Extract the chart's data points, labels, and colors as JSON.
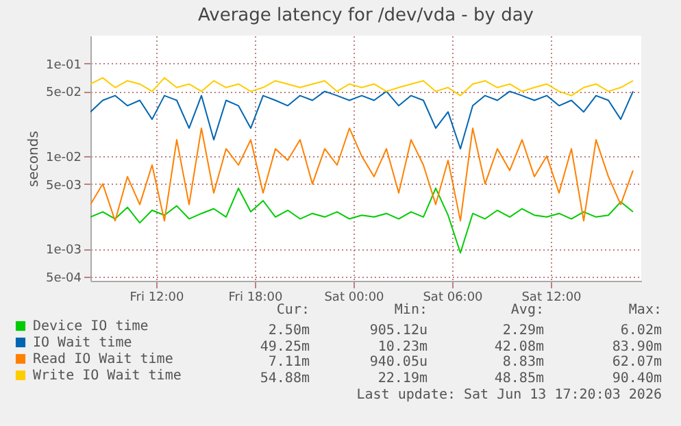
{
  "chart_data": {
    "type": "line",
    "title": "Average latency for /dev/vda - by day",
    "ylabel": "seconds",
    "log": "y",
    "grid": true,
    "legend": "bottom left",
    "marker": "none",
    "line_style": "solid",
    "xlim": [
      "2026-06-12T08:00",
      "2026-06-13T17:30"
    ],
    "xticks": [
      {
        "value": "2026-06-12T12:00",
        "label": "Fri 12:00"
      },
      {
        "value": "2026-06-12T18:00",
        "label": "Fri 18:00"
      },
      {
        "value": "2026-06-13T00:00",
        "label": "Sat 00:00"
      },
      {
        "value": "2026-06-13T06:00",
        "label": "Sat 06:00"
      },
      {
        "value": "2026-06-13T12:00",
        "label": "Sat 12:00"
      }
    ],
    "ylim": [
      0.00045,
      0.2
    ],
    "yticks": [
      {
        "value": 0.0005,
        "label": "5e-04"
      },
      {
        "value": 0.001,
        "label": "1e-03"
      },
      {
        "value": 0.005,
        "label": "5e-03"
      },
      {
        "value": 0.01,
        "label": "1e-02"
      },
      {
        "value": 0.05,
        "label": "5e-02"
      },
      {
        "value": 0.1,
        "label": "1e-01"
      }
    ],
    "x": [
      "2026-06-12T08:00",
      "2026-06-12T08:45",
      "2026-06-12T09:30",
      "2026-06-12T10:15",
      "2026-06-12T11:00",
      "2026-06-12T11:45",
      "2026-06-12T12:30",
      "2026-06-12T13:15",
      "2026-06-12T14:00",
      "2026-06-12T14:45",
      "2026-06-12T15:30",
      "2026-06-12T16:15",
      "2026-06-12T17:00",
      "2026-06-12T17:45",
      "2026-06-12T18:30",
      "2026-06-12T19:15",
      "2026-06-12T20:00",
      "2026-06-12T20:45",
      "2026-06-12T21:30",
      "2026-06-12T22:15",
      "2026-06-12T23:00",
      "2026-06-12T23:45",
      "2026-06-13T00:30",
      "2026-06-13T01:15",
      "2026-06-13T02:00",
      "2026-06-13T02:45",
      "2026-06-13T03:30",
      "2026-06-13T04:15",
      "2026-06-13T05:00",
      "2026-06-13T05:45",
      "2026-06-13T06:30",
      "2026-06-13T07:15",
      "2026-06-13T08:00",
      "2026-06-13T08:45",
      "2026-06-13T09:30",
      "2026-06-13T10:15",
      "2026-06-13T11:00",
      "2026-06-13T11:45",
      "2026-06-13T12:30",
      "2026-06-13T13:15",
      "2026-06-13T14:00",
      "2026-06-13T14:45",
      "2026-06-13T15:30",
      "2026-06-13T16:15",
      "2026-06-13T17:00"
    ],
    "series": [
      {
        "name": "Device IO time",
        "color": "#00cc00",
        "values": [
          0.0022,
          0.0025,
          0.0021,
          0.0028,
          0.0019,
          0.0026,
          0.0023,
          0.0029,
          0.0021,
          0.0024,
          0.0027,
          0.0022,
          0.0045,
          0.0025,
          0.0033,
          0.0022,
          0.0026,
          0.0021,
          0.0024,
          0.0022,
          0.0025,
          0.0021,
          0.0023,
          0.0022,
          0.0024,
          0.0021,
          0.0025,
          0.0022,
          0.0045,
          0.0023,
          0.0009,
          0.0024,
          0.0021,
          0.0026,
          0.0022,
          0.0027,
          0.0023,
          0.0022,
          0.0024,
          0.0021,
          0.0025,
          0.0022,
          0.0023,
          0.0032,
          0.0025
        ]
      },
      {
        "name": "IO Wait time",
        "color": "#0066b3",
        "values": [
          0.03,
          0.04,
          0.045,
          0.035,
          0.04,
          0.025,
          0.045,
          0.04,
          0.02,
          0.045,
          0.015,
          0.04,
          0.035,
          0.02,
          0.045,
          0.04,
          0.035,
          0.045,
          0.04,
          0.05,
          0.045,
          0.04,
          0.045,
          0.04,
          0.05,
          0.035,
          0.045,
          0.04,
          0.02,
          0.03,
          0.012,
          0.035,
          0.045,
          0.04,
          0.05,
          0.045,
          0.04,
          0.045,
          0.035,
          0.04,
          0.03,
          0.045,
          0.04,
          0.025,
          0.05
        ]
      },
      {
        "name": "Read IO Wait time",
        "color": "#ff8000",
        "values": [
          0.003,
          0.005,
          0.002,
          0.006,
          0.003,
          0.008,
          0.002,
          0.015,
          0.003,
          0.02,
          0.004,
          0.012,
          0.008,
          0.015,
          0.004,
          0.012,
          0.009,
          0.015,
          0.005,
          0.012,
          0.008,
          0.02,
          0.01,
          0.006,
          0.012,
          0.004,
          0.015,
          0.008,
          0.003,
          0.009,
          0.002,
          0.02,
          0.005,
          0.012,
          0.007,
          0.015,
          0.006,
          0.01,
          0.004,
          0.012,
          0.002,
          0.015,
          0.006,
          0.003,
          0.007
        ]
      },
      {
        "name": "Write IO Wait time",
        "color": "#ffcc00",
        "values": [
          0.06,
          0.07,
          0.055,
          0.065,
          0.06,
          0.05,
          0.07,
          0.055,
          0.06,
          0.05,
          0.065,
          0.055,
          0.06,
          0.05,
          0.055,
          0.065,
          0.06,
          0.055,
          0.06,
          0.065,
          0.05,
          0.06,
          0.055,
          0.06,
          0.05,
          0.055,
          0.06,
          0.065,
          0.05,
          0.055,
          0.045,
          0.06,
          0.065,
          0.055,
          0.06,
          0.05,
          0.055,
          0.06,
          0.05,
          0.045,
          0.055,
          0.06,
          0.05,
          0.055,
          0.065
        ]
      }
    ],
    "annotations": [
      "Cur:",
      "Min:",
      "Avg:",
      "Max:",
      "2.50m",
      "905.12u",
      "2.29m",
      "6.02m",
      "49.25m",
      "10.23m",
      "42.08m",
      "83.90m",
      "7.11m",
      "940.05u",
      "8.83m",
      "62.07m",
      "54.88m",
      "22.19m",
      "48.85m",
      "90.40m",
      "Last update: Sat Jun 13 17:20:03 2026"
    ]
  }
}
